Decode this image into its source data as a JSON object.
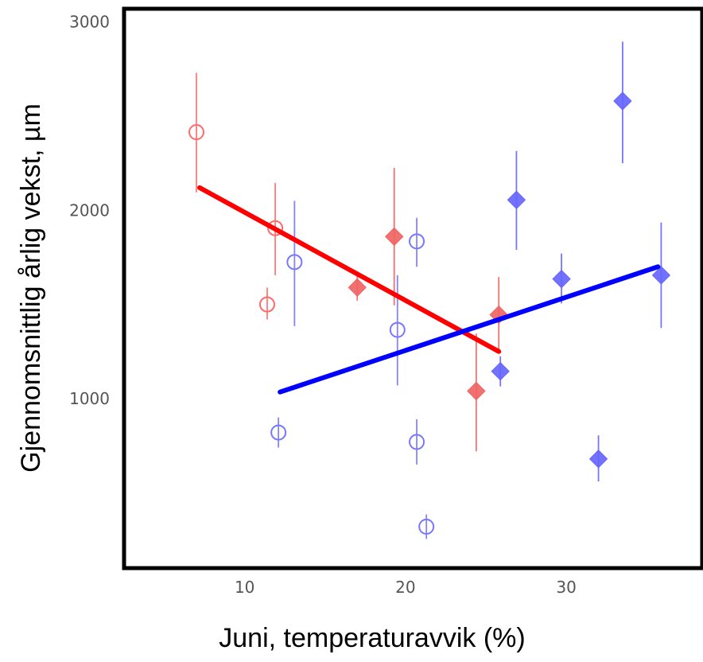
{
  "chart_data": {
    "type": "scatter",
    "title": "",
    "xlabel": "Juni, temperaturavvik (%)",
    "ylabel": "Gjennomsnittlig årlig vekst, µm",
    "xlim": [
      2.5,
      38.5
    ],
    "ylim": [
      100,
      3070
    ],
    "x_ticks": [
      10,
      20,
      30
    ],
    "x_tick_labels": [
      "10",
      "20",
      "30"
    ],
    "y_ticks": [
      1000,
      2000,
      3000
    ],
    "y_tick_labels": [
      "1000",
      "2000",
      "3000"
    ],
    "grid": false,
    "legend": "none",
    "series": [
      {
        "color": "#ff6b6b",
        "marker": "hollow-circle",
        "points": [
          {
            "x": 7.0,
            "y": 2415,
            "lo": 2095,
            "hi": 2730
          },
          {
            "x": 11.4,
            "y": 1500,
            "lo": 1420,
            "hi": 1590
          },
          {
            "x": 11.9,
            "y": 1905,
            "lo": 1655,
            "hi": 2145
          }
        ]
      },
      {
        "color": "#f06464",
        "marker": "filled-diamond",
        "points": [
          {
            "x": 17.0,
            "y": 1590,
            "lo": 1520,
            "hi": 1650
          },
          {
            "x": 19.3,
            "y": 1860,
            "lo": 1495,
            "hi": 2225
          },
          {
            "x": 24.4,
            "y": 1040,
            "lo": 720,
            "hi": 1345
          },
          {
            "x": 25.8,
            "y": 1445,
            "lo": 1240,
            "hi": 1645
          }
        ]
      },
      {
        "color": "#7777ff",
        "marker": "hollow-circle",
        "points": [
          {
            "x": 12.1,
            "y": 820,
            "lo": 740,
            "hi": 900
          },
          {
            "x": 13.1,
            "y": 1725,
            "lo": 1385,
            "hi": 2050
          },
          {
            "x": 19.5,
            "y": 1365,
            "lo": 1070,
            "hi": 1655
          },
          {
            "x": 20.7,
            "y": 1835,
            "lo": 1700,
            "hi": 1960
          },
          {
            "x": 20.7,
            "y": 770,
            "lo": 650,
            "hi": 890
          },
          {
            "x": 21.3,
            "y": 320,
            "lo": 255,
            "hi": 385
          }
        ]
      },
      {
        "color": "#6666ff",
        "marker": "filled-diamond",
        "points": [
          {
            "x": 25.9,
            "y": 1145,
            "lo": 1065,
            "hi": 1225
          },
          {
            "x": 26.9,
            "y": 2055,
            "lo": 1790,
            "hi": 2315
          },
          {
            "x": 29.7,
            "y": 1635,
            "lo": 1505,
            "hi": 1770
          },
          {
            "x": 32.0,
            "y": 680,
            "lo": 560,
            "hi": 805
          },
          {
            "x": 33.5,
            "y": 2580,
            "lo": 2250,
            "hi": 2895
          },
          {
            "x": 35.9,
            "y": 1655,
            "lo": 1375,
            "hi": 1935
          }
        ]
      }
    ],
    "trend_lines": [
      {
        "color": "#ff0000",
        "x": [
          7.2,
          25.8
        ],
        "y": [
          2120,
          1250
        ]
      },
      {
        "color": "#0000ff",
        "x": [
          12.2,
          35.7
        ],
        "y": [
          1035,
          1700
        ]
      }
    ]
  }
}
